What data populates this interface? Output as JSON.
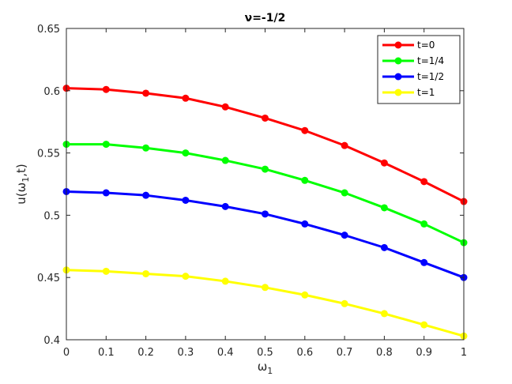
{
  "chart_data": {
    "type": "line",
    "title": "ν=-1/2",
    "xlabel": "ω",
    "xlabel_sub": "1",
    "ylabel_prefix": "u(ω",
    "ylabel_sub": "1",
    "ylabel_suffix": ",t)",
    "xlim": [
      0,
      1
    ],
    "ylim": [
      0.4,
      0.65
    ],
    "x_ticks": [
      0,
      0.1,
      0.2,
      0.3,
      0.4,
      0.5,
      0.6,
      0.7,
      0.8,
      0.9,
      1
    ],
    "x_tick_labels": [
      "0",
      "0.1",
      "0.2",
      "0.3",
      "0.4",
      "0.5",
      "0.6",
      "0.7",
      "0.8",
      "0.9",
      "1"
    ],
    "y_ticks": [
      0.4,
      0.45,
      0.5,
      0.55,
      0.6,
      0.65
    ],
    "y_tick_labels": [
      "0.4",
      "0.45",
      "0.5",
      "0.55",
      "0.6",
      "0.65"
    ],
    "grid": false,
    "legend_position": "top-right",
    "x": [
      0,
      0.1,
      0.2,
      0.3,
      0.4,
      0.5,
      0.6,
      0.7,
      0.8,
      0.9,
      1
    ],
    "series": [
      {
        "name": "t=0",
        "color": "#ff0000",
        "values": [
          0.602,
          0.601,
          0.598,
          0.594,
          0.587,
          0.578,
          0.568,
          0.556,
          0.542,
          0.527,
          0.511
        ]
      },
      {
        "name": "t=1/4",
        "color": "#00ff00",
        "values": [
          0.557,
          0.557,
          0.554,
          0.55,
          0.544,
          0.537,
          0.528,
          0.518,
          0.506,
          0.493,
          0.478
        ]
      },
      {
        "name": "t=1/2",
        "color": "#0000ff",
        "values": [
          0.519,
          0.518,
          0.516,
          0.512,
          0.507,
          0.501,
          0.493,
          0.484,
          0.474,
          0.462,
          0.45
        ]
      },
      {
        "name": "t=1",
        "color": "#ffff00",
        "values": [
          0.456,
          0.455,
          0.453,
          0.451,
          0.447,
          0.442,
          0.436,
          0.429,
          0.421,
          0.412,
          0.403
        ]
      }
    ]
  }
}
